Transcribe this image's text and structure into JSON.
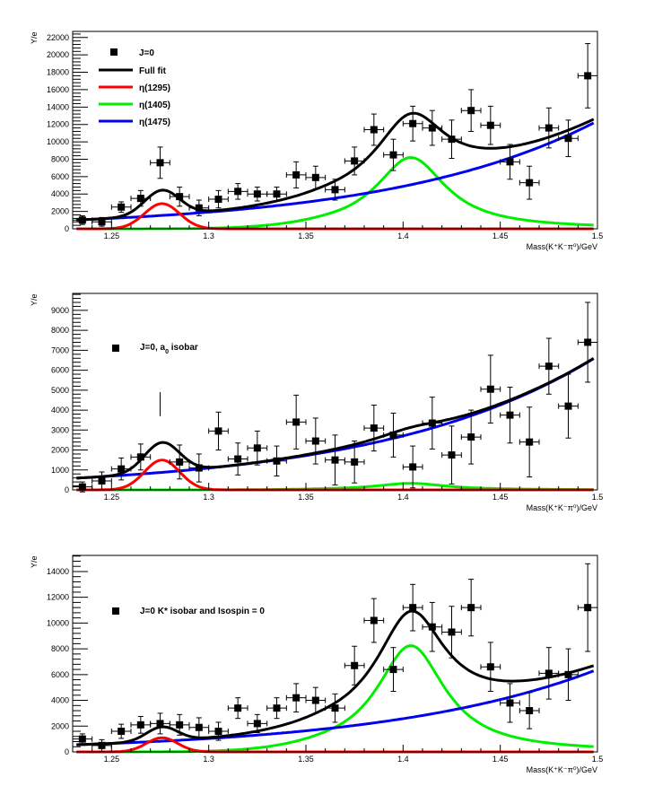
{
  "colors": {
    "data": "#000000",
    "full_fit": "#000000",
    "eta1295": "#ff0000",
    "eta1405": "#00ee00",
    "eta1475": "#0000ee"
  },
  "chart_data": [
    {
      "type": "scatter",
      "xlabel": "Mass(K⁺K⁻π⁰)/GeV",
      "ylabel": "Y/e",
      "xlim": [
        1.23,
        1.5
      ],
      "ylim": [
        0,
        22700
      ],
      "x_ticks": [
        "1.25",
        "1.3",
        "1.35",
        "1.4",
        "1.45",
        "1.5"
      ],
      "x_tick_values": [
        1.25,
        1.3,
        1.35,
        1.4,
        1.45,
        1.5
      ],
      "y_ticks": [
        "0",
        "2000",
        "4000",
        "6000",
        "8000",
        "10000",
        "12000",
        "14000",
        "16000",
        "18000",
        "20000",
        "22000"
      ],
      "y_tick_values": [
        0,
        2000,
        4000,
        6000,
        8000,
        10000,
        12000,
        14000,
        16000,
        18000,
        20000,
        22000
      ],
      "y_minor_step": 400,
      "legend": [
        {
          "label": "J=0",
          "kind": "marker",
          "color_key": "data"
        },
        {
          "label": "Full fit",
          "kind": "line",
          "color_key": "full_fit"
        },
        {
          "label": "η(1295)",
          "kind": "line",
          "color_key": "eta1295"
        },
        {
          "label": "η(1405)",
          "kind": "line",
          "color_key": "eta1405"
        },
        {
          "label": "η(1475)",
          "kind": "line",
          "color_key": "eta1475"
        }
      ],
      "points": {
        "x": [
          1.235,
          1.245,
          1.255,
          1.265,
          1.275,
          1.285,
          1.295,
          1.305,
          1.315,
          1.325,
          1.335,
          1.345,
          1.355,
          1.365,
          1.375,
          1.385,
          1.395,
          1.405,
          1.415,
          1.425,
          1.435,
          1.445,
          1.455,
          1.465,
          1.475,
          1.485,
          1.495
        ],
        "y": [
          1000,
          800,
          2500,
          3500,
          7600,
          3700,
          2400,
          3400,
          4300,
          4000,
          4000,
          6200,
          5900,
          4500,
          7800,
          11400,
          8500,
          12100,
          11600,
          10300,
          13600,
          11900,
          7700,
          5300,
          11600,
          10400,
          17600
        ],
        "yerr": [
          500,
          500,
          600,
          900,
          1800,
          1100,
          900,
          1000,
          900,
          800,
          800,
          1500,
          1300,
          1200,
          1600,
          1800,
          1800,
          2000,
          2000,
          2200,
          2400,
          2200,
          2000,
          1900,
          2300,
          2100,
          3700
        ],
        "xerr": 0.005
      },
      "curves": {
        "eta1295": {
          "mass": 1.276,
          "width": 0.009,
          "peak": 2900,
          "shape": "gauss"
        },
        "eta1405": {
          "mass": 1.404,
          "width": 0.044,
          "peak": 8200,
          "shape": "bw"
        },
        "eta1475": {
          "base": 1000,
          "slope_exp": [
            1.23,
            1000,
            1.5,
            12400
          ]
        }
      }
    },
    {
      "type": "scatter",
      "xlabel": "Mass(K⁺K⁻π⁰)/GeV",
      "ylabel": "Y/e",
      "xlim": [
        1.23,
        1.5
      ],
      "ylim": [
        0,
        9850
      ],
      "x_ticks": [
        "1.25",
        "1.3",
        "1.35",
        "1.4",
        "1.45",
        "1.5"
      ],
      "x_tick_values": [
        1.25,
        1.3,
        1.35,
        1.4,
        1.45,
        1.5
      ],
      "y_ticks": [
        "0",
        "1000",
        "2000",
        "3000",
        "4000",
        "5000",
        "6000",
        "7000",
        "8000",
        "9000"
      ],
      "y_tick_values": [
        0,
        1000,
        2000,
        3000,
        4000,
        5000,
        6000,
        7000,
        8000,
        9000
      ],
      "y_minor_step": 200,
      "legend": [
        {
          "label": "J=0, a",
          "sub": "0",
          "label_after": " isobar",
          "kind": "marker",
          "color_key": "data"
        }
      ],
      "points": {
        "x": [
          1.235,
          1.245,
          1.255,
          1.265,
          1.275,
          1.285,
          1.295,
          1.305,
          1.315,
          1.325,
          1.335,
          1.345,
          1.355,
          1.365,
          1.375,
          1.385,
          1.395,
          1.405,
          1.415,
          1.425,
          1.435,
          1.445,
          1.455,
          1.465,
          1.475,
          1.485,
          1.495
        ],
        "y": [
          150,
          450,
          1050,
          1650,
          4300,
          1400,
          1100,
          2950,
          1550,
          2100,
          1450,
          3400,
          2450,
          1500,
          1400,
          3100,
          2750,
          1150,
          3350,
          1750,
          2650,
          5050,
          3750,
          2400,
          6200,
          4200,
          7400
        ],
        "yerr": [
          250,
          450,
          550,
          650,
          600,
          850,
          700,
          950,
          800,
          850,
          750,
          1350,
          1150,
          1250,
          1050,
          1150,
          1100,
          1050,
          1300,
          1450,
          1350,
          1700,
          1400,
          1750,
          1400,
          1600,
          2000
        ],
        "marker": [
          1,
          1,
          1,
          1,
          0,
          1,
          1,
          1,
          1,
          1,
          1,
          1,
          1,
          1,
          1,
          1,
          1,
          1,
          1,
          1,
          1,
          1,
          1,
          1,
          1,
          1,
          1
        ],
        "xerr": 0.005
      },
      "curves": {
        "eta1295": {
          "mass": 1.276,
          "width": 0.009,
          "peak": 1500,
          "shape": "gauss"
        },
        "eta1405": {
          "mass": 1.404,
          "width": 0.044,
          "peak": 330,
          "shape": "bw"
        },
        "eta1475": {
          "slope_exp": [
            1.23,
            580,
            1.5,
            6700
          ]
        }
      }
    },
    {
      "type": "scatter",
      "xlabel": "Mass(K⁺K⁻π⁰)/GeV",
      "ylabel": "Y/e",
      "xlim": [
        1.23,
        1.5
      ],
      "ylim": [
        0,
        15250
      ],
      "x_ticks": [
        "1.25",
        "1.3",
        "1.35",
        "1.4",
        "1.45",
        "1.5"
      ],
      "x_tick_values": [
        1.25,
        1.3,
        1.35,
        1.4,
        1.45,
        1.5
      ],
      "y_ticks": [
        "0",
        "2000",
        "4000",
        "6000",
        "8000",
        "10000",
        "12000",
        "14000"
      ],
      "y_tick_values": [
        0,
        2000,
        4000,
        6000,
        8000,
        10000,
        12000,
        14000
      ],
      "y_minor_step": 400,
      "legend": [
        {
          "label": "J=0 K* isobar and Isospin = 0",
          "kind": "marker",
          "color_key": "data"
        }
      ],
      "points": {
        "x": [
          1.235,
          1.245,
          1.255,
          1.265,
          1.275,
          1.285,
          1.295,
          1.305,
          1.315,
          1.325,
          1.335,
          1.345,
          1.355,
          1.365,
          1.375,
          1.385,
          1.395,
          1.405,
          1.415,
          1.425,
          1.435,
          1.445,
          1.455,
          1.465,
          1.475,
          1.485,
          1.495
        ],
        "y": [
          1000,
          500,
          1600,
          2100,
          2200,
          2100,
          1900,
          1600,
          3400,
          2200,
          3400,
          4200,
          4000,
          3400,
          6700,
          10200,
          6400,
          11200,
          9700,
          9300,
          11200,
          6600,
          3800,
          3200,
          6100,
          6000,
          11200
        ],
        "yerr": [
          400,
          450,
          550,
          650,
          800,
          800,
          750,
          700,
          800,
          700,
          800,
          1100,
          1000,
          1100,
          1500,
          1700,
          1700,
          1800,
          1900,
          2000,
          2200,
          1900,
          1500,
          1400,
          2000,
          2000,
          3400
        ],
        "xerr": 0.005
      },
      "curves": {
        "eta1295": {
          "mass": 1.276,
          "width": 0.008,
          "peak": 1100,
          "shape": "gauss"
        },
        "eta1405": {
          "mass": 1.404,
          "width": 0.043,
          "peak": 8250,
          "shape": "bw"
        },
        "eta1475": {
          "slope_exp": [
            1.23,
            550,
            1.5,
            6400
          ]
        }
      }
    }
  ]
}
